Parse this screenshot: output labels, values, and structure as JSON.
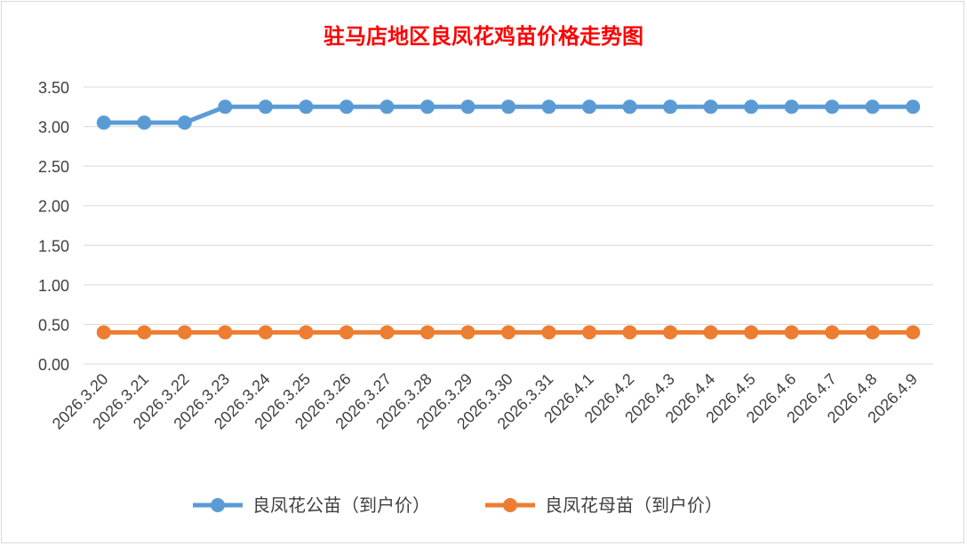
{
  "chart_data": {
    "type": "line",
    "title": "驻马店地区良凤花鸡苗价格走势图",
    "categories": [
      "2026.3.20",
      "2026.3.21",
      "2026.3.22",
      "2026.3.23",
      "2026.3.24",
      "2026.3.25",
      "2026.3.26",
      "2026.3.27",
      "2026.3.28",
      "2026.3.29",
      "2026.3.30",
      "2026.3.31",
      "2026.4.1",
      "2026.4.2",
      "2026.4.3",
      "2026.4.4",
      "2026.4.5",
      "2026.4.6",
      "2026.4.7",
      "2026.4.8",
      "2026.4.9"
    ],
    "series": [
      {
        "name": "良凤花公苗（到户价）",
        "color": "#5b9bd5",
        "values": [
          3.05,
          3.05,
          3.05,
          3.25,
          3.25,
          3.25,
          3.25,
          3.25,
          3.25,
          3.25,
          3.25,
          3.25,
          3.25,
          3.25,
          3.25,
          3.25,
          3.25,
          3.25,
          3.25,
          3.25,
          3.25
        ]
      },
      {
        "name": "良凤花母苗（到户价）",
        "color": "#ed7d31",
        "values": [
          0.4,
          0.4,
          0.4,
          0.4,
          0.4,
          0.4,
          0.4,
          0.4,
          0.4,
          0.4,
          0.4,
          0.4,
          0.4,
          0.4,
          0.4,
          0.4,
          0.4,
          0.4,
          0.4,
          0.4,
          0.4
        ]
      }
    ],
    "ylim": [
      0,
      3.5
    ],
    "yticks": [
      "0.00",
      "0.50",
      "1.00",
      "1.50",
      "2.00",
      "2.50",
      "3.00",
      "3.50"
    ],
    "ytick_values": [
      0,
      0.5,
      1,
      1.5,
      2,
      2.5,
      3,
      3.5
    ],
    "xlabel": "",
    "ylabel": "",
    "grid": true,
    "legend_position": "bottom",
    "title_color": "#ff0000",
    "grid_color": "#d9d9d9"
  }
}
